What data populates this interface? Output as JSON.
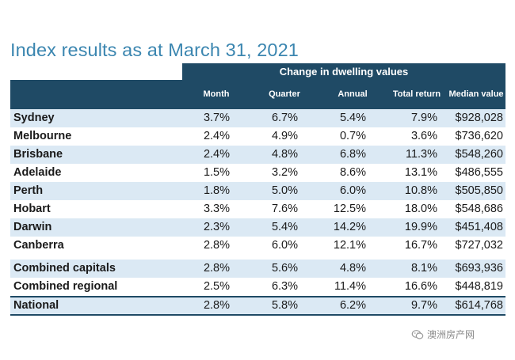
{
  "title": "Index results as at March 31, 2021",
  "table": {
    "group_header": "Change in dwelling values",
    "columns": [
      "Month",
      "Quarter",
      "Annual",
      "Total return",
      "Median value"
    ],
    "rows": [
      {
        "name": "Sydney",
        "month": "3.7%",
        "quarter": "6.7%",
        "annual": "5.4%",
        "total": "7.9%",
        "median": "$928,028"
      },
      {
        "name": "Melbourne",
        "month": "2.4%",
        "quarter": "4.9%",
        "annual": "0.7%",
        "total": "3.6%",
        "median": "$736,620"
      },
      {
        "name": "Brisbane",
        "month": "2.4%",
        "quarter": "4.8%",
        "annual": "6.8%",
        "total": "11.3%",
        "median": "$548,260"
      },
      {
        "name": "Adelaide",
        "month": "1.5%",
        "quarter": "3.2%",
        "annual": "8.6%",
        "total": "13.1%",
        "median": "$486,555"
      },
      {
        "name": "Perth",
        "month": "1.8%",
        "quarter": "5.0%",
        "annual": "6.0%",
        "total": "10.8%",
        "median": "$505,850"
      },
      {
        "name": "Hobart",
        "month": "3.3%",
        "quarter": "7.6%",
        "annual": "12.5%",
        "total": "18.0%",
        "median": "$548,686"
      },
      {
        "name": "Darwin",
        "month": "2.3%",
        "quarter": "5.4%",
        "annual": "14.2%",
        "total": "19.9%",
        "median": "$451,408"
      },
      {
        "name": "Canberra",
        "month": "2.8%",
        "quarter": "6.0%",
        "annual": "12.1%",
        "total": "16.7%",
        "median": "$727,032"
      },
      {
        "name": "Combined capitals",
        "month": "2.8%",
        "quarter": "5.6%",
        "annual": "4.8%",
        "total": "8.1%",
        "median": "$693,936"
      },
      {
        "name": "Combined regional",
        "month": "2.5%",
        "quarter": "6.3%",
        "annual": "11.4%",
        "total": "16.6%",
        "median": "$448,819"
      },
      {
        "name": "National",
        "month": "2.8%",
        "quarter": "5.8%",
        "annual": "6.2%",
        "total": "9.7%",
        "median": "$614,768"
      }
    ]
  },
  "watermark": {
    "text": "澳洲房产网",
    "icon": "wechat-logo-icon"
  },
  "colors": {
    "header_bg": "#1f4a65",
    "band_bg": "#dbe9f4",
    "title": "#3b86b0"
  }
}
